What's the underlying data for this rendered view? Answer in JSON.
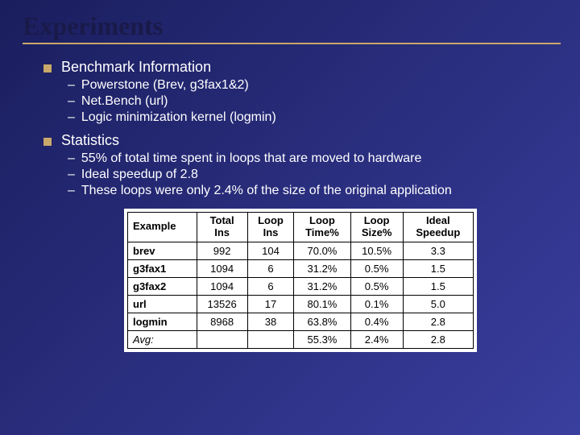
{
  "title": "Experiments",
  "sections": [
    {
      "heading": "Benchmark Information",
      "items": [
        "Powerstone (Brev, g3fax1&2)",
        "Net.Bench (url)",
        "Logic minimization kernel (logmin)"
      ]
    },
    {
      "heading": "Statistics",
      "items": [
        "55% of total time spent in loops that are moved to hardware",
        "Ideal speedup of 2.8",
        "These loops were only 2.4% of the size of the original application"
      ]
    }
  ],
  "table": {
    "columns": [
      "Example",
      "Total Ins",
      "Loop Ins",
      "Loop Time%",
      "Loop Size%",
      "Ideal Speedup"
    ],
    "headers_multiline": [
      [
        "",
        "Example"
      ],
      [
        "Total",
        "Ins"
      ],
      [
        "Loop",
        "Ins"
      ],
      [
        "Loop",
        "Time%"
      ],
      [
        "Loop",
        "Size%"
      ],
      [
        "Ideal",
        "Speedup"
      ]
    ],
    "rows": [
      [
        "brev",
        "992",
        "104",
        "70.0%",
        "10.5%",
        "3.3"
      ],
      [
        "g3fax1",
        "1094",
        "6",
        "31.2%",
        "0.5%",
        "1.5"
      ],
      [
        "g3fax2",
        "1094",
        "6",
        "31.2%",
        "0.5%",
        "1.5"
      ],
      [
        "url",
        "13526",
        "17",
        "80.1%",
        "0.1%",
        "5.0"
      ],
      [
        "logmin",
        "8968",
        "38",
        "63.8%",
        "0.4%",
        "2.8"
      ]
    ],
    "avg_row": [
      "Avg:",
      "",
      "",
      "55.3%",
      "2.4%",
      "2.8"
    ],
    "col_widths": [
      "78px",
      "60px",
      "60px",
      "72px",
      "72px",
      "78px"
    ]
  },
  "colors": {
    "accent": "#c9a86a",
    "title_text": "#1a1a4a",
    "body_text": "#ffffff",
    "table_bg": "#ffffff",
    "table_text": "#000000"
  },
  "fonts": {
    "title_family": "Times New Roman",
    "body_family": "Verdana",
    "title_size_pt": 32,
    "heading_size_pt": 18,
    "sub_size_pt": 16,
    "table_size_pt": 13
  }
}
